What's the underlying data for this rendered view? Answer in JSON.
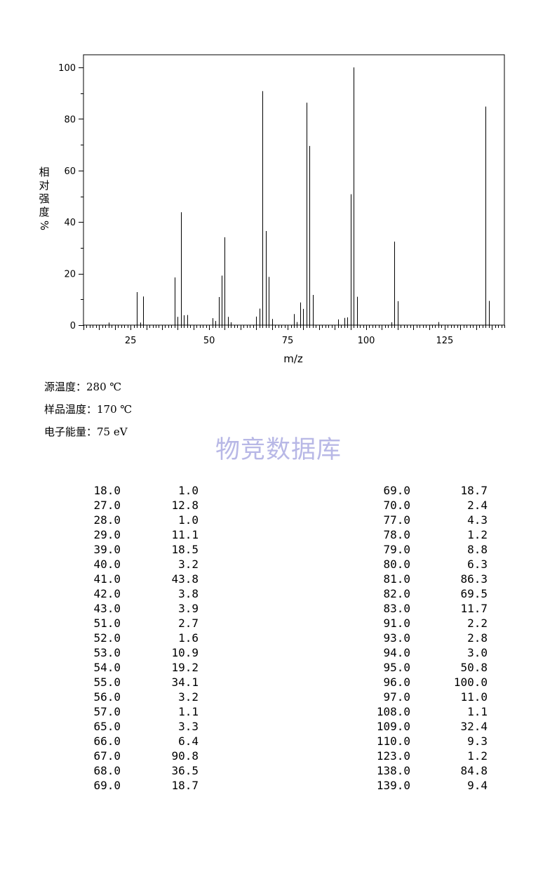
{
  "chart_data": {
    "type": "bar",
    "xlabel": "m/z",
    "ylabel": "相对强度%",
    "xlim": [
      10,
      144
    ],
    "ylim": [
      0,
      105
    ],
    "x_ticks": [
      25,
      50,
      75,
      100,
      125
    ],
    "y_ticks": [
      0,
      20,
      40,
      60,
      80,
      100
    ],
    "grid": false,
    "peaks": [
      [
        18,
        1.0
      ],
      [
        27,
        12.8
      ],
      [
        28,
        1.0
      ],
      [
        29,
        11.1
      ],
      [
        39,
        18.5
      ],
      [
        40,
        3.2
      ],
      [
        41,
        43.8
      ],
      [
        42,
        3.8
      ],
      [
        43,
        3.9
      ],
      [
        51,
        2.7
      ],
      [
        52,
        1.6
      ],
      [
        53,
        10.9
      ],
      [
        54,
        19.2
      ],
      [
        55,
        34.1
      ],
      [
        56,
        3.2
      ],
      [
        57,
        1.1
      ],
      [
        65,
        3.3
      ],
      [
        66,
        6.4
      ],
      [
        67,
        90.8
      ],
      [
        68,
        36.5
      ],
      [
        69,
        18.7
      ],
      [
        70,
        2.4
      ],
      [
        77,
        4.3
      ],
      [
        78,
        1.2
      ],
      [
        79,
        8.8
      ],
      [
        80,
        6.3
      ],
      [
        81,
        86.3
      ],
      [
        82,
        69.5
      ],
      [
        83,
        11.7
      ],
      [
        91,
        2.2
      ],
      [
        93,
        2.8
      ],
      [
        94,
        3.0
      ],
      [
        95,
        50.8
      ],
      [
        96,
        100.0
      ],
      [
        97,
        11.0
      ],
      [
        108,
        1.1
      ],
      [
        109,
        32.4
      ],
      [
        110,
        9.3
      ],
      [
        123,
        1.2
      ],
      [
        138,
        84.8
      ],
      [
        139,
        9.4
      ]
    ]
  },
  "conditions": {
    "source_temp": "源温度：280 ℃",
    "sample_temp": "样品温度：170 ℃",
    "electron_energy": "电子能量：75 eV"
  },
  "watermark": "物竞数据库",
  "table": {
    "left": [
      [
        "18.0",
        "1.0"
      ],
      [
        "27.0",
        "12.8"
      ],
      [
        "28.0",
        "1.0"
      ],
      [
        "29.0",
        "11.1"
      ],
      [
        "39.0",
        "18.5"
      ],
      [
        "40.0",
        "3.2"
      ],
      [
        "41.0",
        "43.8"
      ],
      [
        "42.0",
        "3.8"
      ],
      [
        "43.0",
        "3.9"
      ],
      [
        "51.0",
        "2.7"
      ],
      [
        "52.0",
        "1.6"
      ],
      [
        "53.0",
        "10.9"
      ],
      [
        "54.0",
        "19.2"
      ],
      [
        "55.0",
        "34.1"
      ],
      [
        "56.0",
        "3.2"
      ],
      [
        "57.0",
        "1.1"
      ],
      [
        "65.0",
        "3.3"
      ],
      [
        "66.0",
        "6.4"
      ],
      [
        "67.0",
        "90.8"
      ],
      [
        "68.0",
        "36.5"
      ],
      [
        "69.0",
        "18.7"
      ]
    ],
    "right": [
      [
        "69.0",
        "18.7"
      ],
      [
        "70.0",
        "2.4"
      ],
      [
        "77.0",
        "4.3"
      ],
      [
        "78.0",
        "1.2"
      ],
      [
        "79.0",
        "8.8"
      ],
      [
        "80.0",
        "6.3"
      ],
      [
        "81.0",
        "86.3"
      ],
      [
        "82.0",
        "69.5"
      ],
      [
        "83.0",
        "11.7"
      ],
      [
        "91.0",
        "2.2"
      ],
      [
        "93.0",
        "2.8"
      ],
      [
        "94.0",
        "3.0"
      ],
      [
        "95.0",
        "50.8"
      ],
      [
        "96.0",
        "100.0"
      ],
      [
        "97.0",
        "11.0"
      ],
      [
        "108.0",
        "1.1"
      ],
      [
        "109.0",
        "32.4"
      ],
      [
        "110.0",
        "9.3"
      ],
      [
        "123.0",
        "1.2"
      ],
      [
        "138.0",
        "84.8"
      ],
      [
        "139.0",
        "9.4"
      ]
    ]
  }
}
